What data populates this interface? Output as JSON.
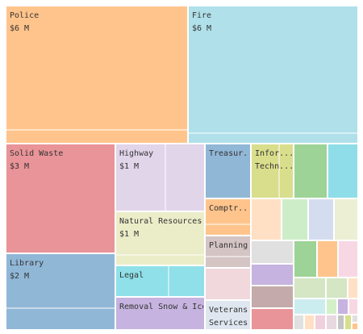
{
  "chart_data": {
    "type": "treemap",
    "tiles": [
      {
        "name": "Police",
        "value_label": "$6 M",
        "color": "#FFC48C"
      },
      {
        "name": "Fire",
        "value_label": "$6 M",
        "color": "#B0E0EA"
      },
      {
        "name": "Solid Waste",
        "value_label": "$3 M",
        "color": "#E99498"
      },
      {
        "name": "Library",
        "value_label": "$2 M",
        "color": "#91B7D7"
      },
      {
        "name": "Highway",
        "value_label": "$1 M",
        "color": "#E1D5EA"
      },
      {
        "name": "Natural Resources",
        "value_label": "$1 M",
        "color": "#EBEDC8"
      },
      {
        "name": "Legal",
        "value_label": "",
        "color": "#8FE0E8"
      },
      {
        "name": "Removal Snow & Ice",
        "value_label": "",
        "color": "#C6B3DF"
      },
      {
        "name": "Treasur...",
        "value_label": "",
        "color": "#91B7D7"
      },
      {
        "name": "Infor... Techn...",
        "value_label": "",
        "color": "#D9DE8C"
      },
      {
        "name": "Comptr...",
        "value_label": "",
        "color": "#FFC48C"
      },
      {
        "name": "Planning",
        "value_label": "",
        "color": "#D4C4C4"
      },
      {
        "name": "Veterans Services",
        "value_label": "",
        "color": "#DFE6EF"
      }
    ],
    "unlabeled_tile_colors": [
      "#9DD396",
      "#8FDDE8",
      "#FFE0C4",
      "#CDEDC8",
      "#D4DDF0",
      "#ECEFD4",
      "#E0E0E0",
      "#9DD396",
      "#FFC48C",
      "#F8D7E4",
      "#C6B3DF",
      "#D4E6C4",
      "#C4AAAA",
      "#F0D8DC",
      "#E99498",
      "#D4E6C4",
      "#CCEDF0",
      "#FFE0C4",
      "#D4F0C8",
      "#C6B3DF",
      "#F8D7E4",
      "#B5B5B5",
      "#FFE0C4",
      "#F0D0DC",
      "#E8D8E0",
      "#C4C4C4",
      "#D9DE8C",
      "#E0E0E0",
      "#FFC48C",
      "#E0E0E0"
    ]
  }
}
